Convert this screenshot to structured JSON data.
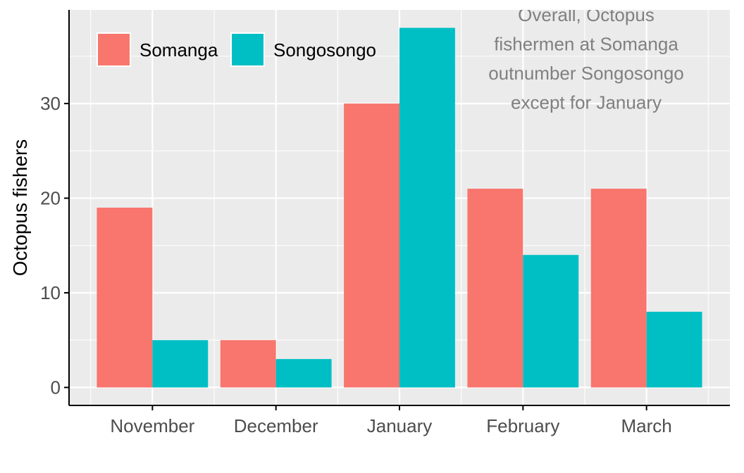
{
  "chart_data": {
    "type": "bar",
    "title": "",
    "xlabel": "",
    "ylabel": "Octopus fishers",
    "categories": [
      "November",
      "December",
      "January",
      "February",
      "March"
    ],
    "series": [
      {
        "name": "Somanga",
        "values": [
          19,
          5,
          30,
          21,
          21
        ],
        "color": "#F8766D"
      },
      {
        "name": "Songosongo",
        "values": [
          5,
          3,
          38,
          14,
          8
        ],
        "color": "#00BFC4"
      }
    ],
    "ylim": [
      -1.9,
      39.9
    ],
    "yticks": [
      0,
      10,
      20,
      30
    ],
    "grid": true,
    "legend": {
      "position": "top-left",
      "labels": [
        "Somanga",
        "Songosongo"
      ]
    },
    "annotation": {
      "lines": [
        "Overall, Octopus",
        "fishermen at Somanga",
        "outnumber Songosongo",
        "except for January"
      ],
      "placement": "top-right"
    },
    "colors": {
      "panel_background": "#EBEBEB",
      "grid": "#FFFFFF",
      "axis_line": "#000000",
      "tick_label": "#4D4D4D",
      "annotation_text": "#808080"
    }
  }
}
